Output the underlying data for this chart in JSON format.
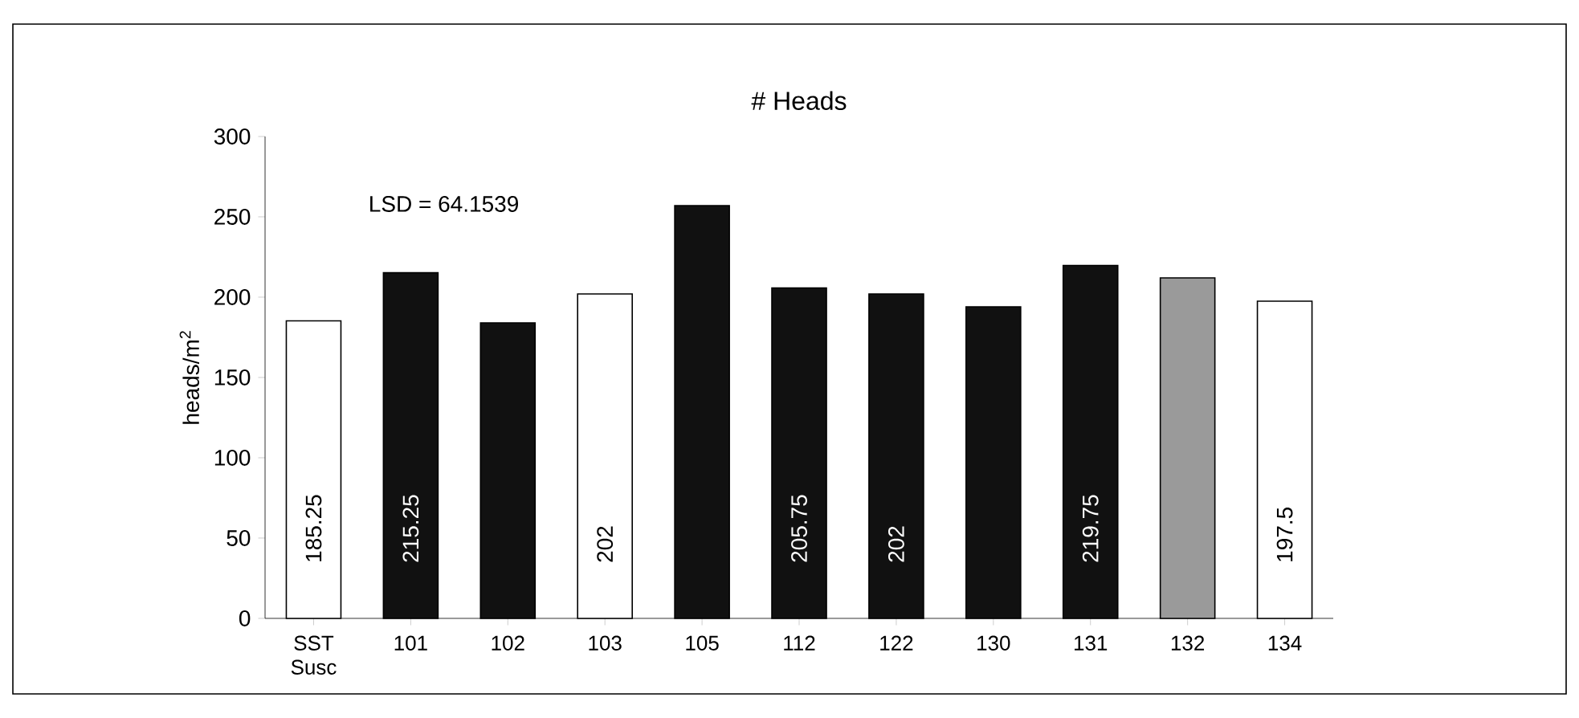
{
  "chart_data": {
    "type": "bar",
    "title": "# Heads",
    "ylabel": "heads/m$^{2}$",
    "categories": [
      "SST Susc",
      "101",
      "102",
      "103",
      "105",
      "112",
      "122",
      "130",
      "131",
      "132",
      "134"
    ],
    "values": [
      185.25,
      215.25,
      184,
      202,
      257,
      205.75,
      202,
      194,
      219.75,
      212,
      197.5
    ],
    "colors": [
      "#ffffff",
      "#111111",
      "#111111",
      "#ffffff",
      "#111111",
      "#111111",
      "#111111",
      "#111111",
      "#111111",
      "#9a9a9a",
      "#ffffff"
    ],
    "value_labels": [
      "185.25",
      "215.25",
      null,
      "202",
      null,
      "205.75",
      "202",
      null,
      "219.75",
      null,
      "197.5"
    ],
    "annotations": [
      "LSD = 64.1539"
    ],
    "ylim": [
      0,
      300
    ],
    "yticks": [
      0,
      50,
      100,
      150,
      200,
      250,
      300
    ],
    "grid": false
  }
}
